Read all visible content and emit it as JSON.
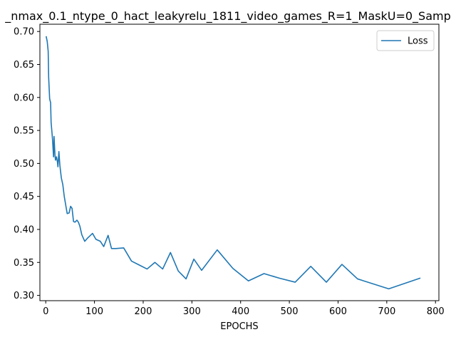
{
  "chart_data": {
    "type": "line",
    "title": "_nmax_0.1_ntype_0_hact_leakyrelu_1811_video_games_R=1_MaskU=0_Samp",
    "xlabel": "EPOCHS",
    "ylabel": "",
    "xlim": [
      -12,
      807
    ],
    "ylim": [
      0.292,
      0.711
    ],
    "xticks": [
      0,
      100,
      200,
      300,
      400,
      500,
      600,
      700,
      800
    ],
    "yticks": [
      0.3,
      0.35,
      0.4,
      0.45,
      0.5,
      0.55,
      0.6,
      0.65,
      0.7
    ],
    "grid": false,
    "legend_position": "top-right",
    "colors": {
      "line": "#1f77b4",
      "axes": "#000000",
      "legend_border": "#cccccc"
    },
    "series": [
      {
        "name": "Loss",
        "x": [
          1,
          3,
          5,
          6,
          8,
          10,
          11,
          13,
          14,
          16,
          17,
          19,
          20,
          22,
          24,
          25,
          27,
          29,
          32,
          35,
          38,
          41,
          44,
          48,
          51,
          54,
          57,
          60,
          64,
          67,
          70,
          74,
          80,
          86,
          96,
          103,
          112,
          119,
          128,
          135,
          144,
          160,
          176,
          192,
          208,
          224,
          240,
          256,
          272,
          288,
          304,
          320,
          352,
          384,
          416,
          448,
          480,
          512,
          544,
          576,
          608,
          640,
          704,
          768
        ],
        "y": [
          0.692,
          0.685,
          0.67,
          0.63,
          0.598,
          0.592,
          0.562,
          0.545,
          0.535,
          0.51,
          0.541,
          0.512,
          0.505,
          0.51,
          0.502,
          0.495,
          0.518,
          0.497,
          0.478,
          0.468,
          0.45,
          0.437,
          0.424,
          0.425,
          0.435,
          0.432,
          0.412,
          0.411,
          0.414,
          0.411,
          0.405,
          0.392,
          0.382,
          0.387,
          0.394,
          0.385,
          0.382,
          0.374,
          0.391,
          0.371,
          0.371,
          0.372,
          0.352,
          0.346,
          0.34,
          0.35,
          0.34,
          0.365,
          0.337,
          0.325,
          0.355,
          0.338,
          0.369,
          0.341,
          0.322,
          0.333,
          0.326,
          0.32,
          0.344,
          0.32,
          0.347,
          0.325,
          0.31,
          0.326
        ]
      }
    ]
  }
}
